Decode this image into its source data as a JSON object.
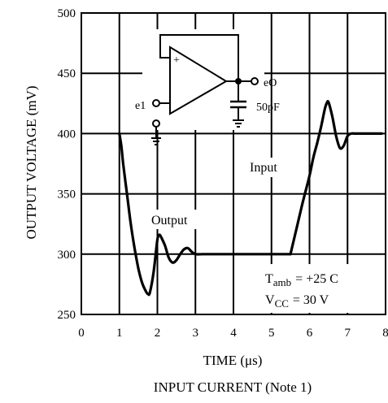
{
  "chart_data": {
    "type": "line",
    "xlabel": "TIME (μs)",
    "subtitle": "INPUT CURRENT (Note 1)",
    "ylabel": "OUTPUT VOLTAGE (mV)",
    "xlim": [
      0,
      8
    ],
    "ylim": [
      250,
      500
    ],
    "x_ticks": [
      "0",
      "1",
      "2",
      "3",
      "4",
      "5",
      "6",
      "7",
      "8"
    ],
    "y_ticks": [
      "250",
      "300",
      "350",
      "400",
      "450",
      "500"
    ],
    "grid": true,
    "series": [
      {
        "name": "Output",
        "x": [
          1.0,
          1.05,
          1.1,
          1.2,
          1.3,
          1.4,
          1.5,
          1.6,
          1.7,
          1.75,
          1.8,
          1.9,
          2.0,
          2.05,
          2.1,
          2.2,
          2.3,
          2.4,
          2.5,
          2.6,
          2.7,
          2.8,
          2.9,
          3.0,
          3.2,
          3.5,
          4.0,
          4.5,
          5.0,
          5.5
        ],
        "values": [
          400,
          390,
          375,
          350,
          325,
          305,
          288,
          276,
          269,
          267,
          268,
          285,
          312,
          316,
          314,
          307,
          297,
          293,
          295,
          300,
          304,
          305,
          302,
          300,
          300,
          300,
          300,
          300,
          300,
          300
        ]
      },
      {
        "name": "Input",
        "x": [
          5.5,
          5.8,
          6.0,
          6.1,
          6.2,
          6.3,
          6.4,
          6.45,
          6.5,
          6.6,
          6.7,
          6.8,
          6.9,
          7.0,
          7.1,
          7.2,
          7.5,
          7.9
        ],
        "values": [
          300,
          340,
          365,
          380,
          392,
          405,
          420,
          425,
          426,
          414,
          398,
          388,
          390,
          398,
          400,
          400,
          400,
          400
        ]
      }
    ],
    "annotations": {
      "output_label": "Output",
      "input_label": "Input",
      "temp_symbol": "T",
      "temp_sub": "amb",
      "temp_value": "= +25  C",
      "vcc_symbol": "V",
      "vcc_sub": "CC",
      "vcc_value": "= 30  V"
    },
    "circuit": {
      "input_label": "e1",
      "output_label": "eO",
      "cap_label": "50pF",
      "plus_sign": "+"
    }
  }
}
